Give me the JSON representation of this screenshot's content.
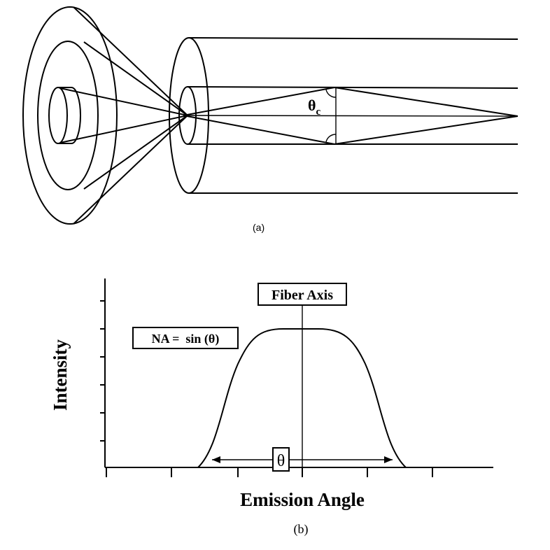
{
  "panel_a": {
    "caption": "(a)",
    "angle_label": "θ",
    "angle_subscript": "c"
  },
  "panel_b": {
    "caption": "(b)",
    "y_axis_label": "Intensity",
    "x_axis_label": "Emission Angle",
    "fiber_axis_label": "Fiber Axis",
    "na_formula": "NA =  sin (θ)",
    "theta_label": "θ"
  }
}
